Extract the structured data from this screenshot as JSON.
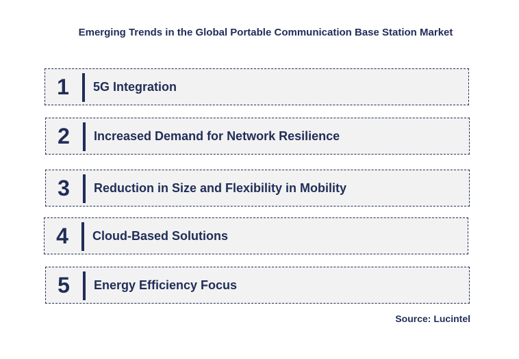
{
  "title": "Emerging Trends in the Global Portable Communication Base Station Market",
  "trends": [
    {
      "number": "1",
      "label": "5G Integration"
    },
    {
      "number": "2",
      "label": "Increased Demand for Network Resilience"
    },
    {
      "number": "3",
      "label": "Reduction in Size and Flexibility in Mobility"
    },
    {
      "number": "4",
      "label": "Cloud-Based Solutions"
    },
    {
      "number": "5",
      "label": "Energy Efficiency Focus"
    }
  ],
  "source": "Source: Lucintel",
  "colors": {
    "primary": "#1f2d57",
    "row_background": "#f2f2f2"
  }
}
